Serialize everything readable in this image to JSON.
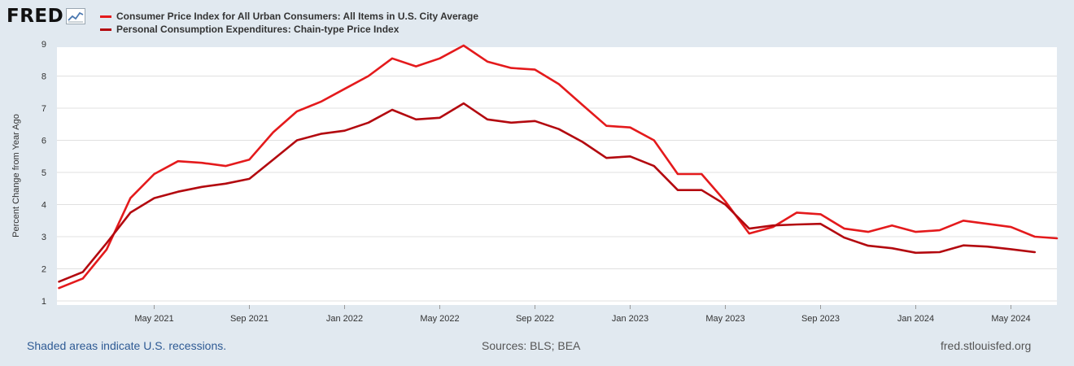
{
  "brand": {
    "logo_text": "FRED"
  },
  "footer": {
    "note": "Shaded areas indicate U.S. recessions.",
    "sources": "Sources: BLS; BEA",
    "url": "fred.stlouisfed.org"
  },
  "chart_data": {
    "type": "line",
    "title": "",
    "xlabel": "",
    "ylabel": "Percent Change from Year Ago",
    "ylim": [
      1,
      9
    ],
    "yticks": [
      1,
      2,
      3,
      4,
      5,
      6,
      7,
      8,
      9
    ],
    "x": [
      "2021-01",
      "2021-02",
      "2021-03",
      "2021-04",
      "2021-05",
      "2021-06",
      "2021-07",
      "2021-08",
      "2021-09",
      "2021-10",
      "2021-11",
      "2021-12",
      "2022-01",
      "2022-02",
      "2022-03",
      "2022-04",
      "2022-05",
      "2022-06",
      "2022-07",
      "2022-08",
      "2022-09",
      "2022-10",
      "2022-11",
      "2022-12",
      "2023-01",
      "2023-02",
      "2023-03",
      "2023-04",
      "2023-05",
      "2023-06",
      "2023-07",
      "2023-08",
      "2023-09",
      "2023-10",
      "2023-11",
      "2023-12",
      "2024-01",
      "2024-02",
      "2024-03",
      "2024-04",
      "2024-05",
      "2024-06",
      "2024-07"
    ],
    "xticks": [
      {
        "label": "May 2021",
        "index": 4
      },
      {
        "label": "Sep 2021",
        "index": 8
      },
      {
        "label": "Jan 2022",
        "index": 12
      },
      {
        "label": "May 2022",
        "index": 16
      },
      {
        "label": "Sep 2022",
        "index": 20
      },
      {
        "label": "Jan 2023",
        "index": 24
      },
      {
        "label": "May 2023",
        "index": 28
      },
      {
        "label": "Sep 2023",
        "index": 32
      },
      {
        "label": "Jan 2024",
        "index": 36
      },
      {
        "label": "May 2024",
        "index": 40
      }
    ],
    "series": [
      {
        "name": "Consumer Price Index for All Urban Consumers: All Items in U.S. City Average",
        "color": "#e41a1c",
        "values": [
          1.4,
          1.7,
          2.6,
          4.2,
          4.95,
          5.35,
          5.3,
          5.2,
          5.4,
          6.25,
          6.9,
          7.2,
          7.6,
          8.0,
          8.55,
          8.3,
          8.55,
          8.95,
          8.45,
          8.25,
          8.2,
          7.75,
          7.1,
          6.45,
          6.4,
          6.0,
          4.95,
          4.95,
          4.1,
          3.1,
          3.3,
          3.75,
          3.7,
          3.25,
          3.15,
          3.35,
          3.15,
          3.2,
          3.5,
          3.4,
          3.3,
          3.0,
          2.95
        ]
      },
      {
        "name": "Personal Consumption Expenditures: Chain-type Price Index",
        "color": "#b3090f",
        "values": [
          1.6,
          1.9,
          2.8,
          3.75,
          4.2,
          4.4,
          4.55,
          4.65,
          4.8,
          5.4,
          6.0,
          6.2,
          6.3,
          6.55,
          6.95,
          6.65,
          6.7,
          7.15,
          6.65,
          6.55,
          6.6,
          6.35,
          5.95,
          5.45,
          5.5,
          5.2,
          4.45,
          4.45,
          4.0,
          3.25,
          3.35,
          3.38,
          3.4,
          2.97,
          2.72,
          2.64,
          2.5,
          2.52,
          2.73,
          2.69,
          2.61,
          2.52,
          null
        ]
      }
    ]
  }
}
